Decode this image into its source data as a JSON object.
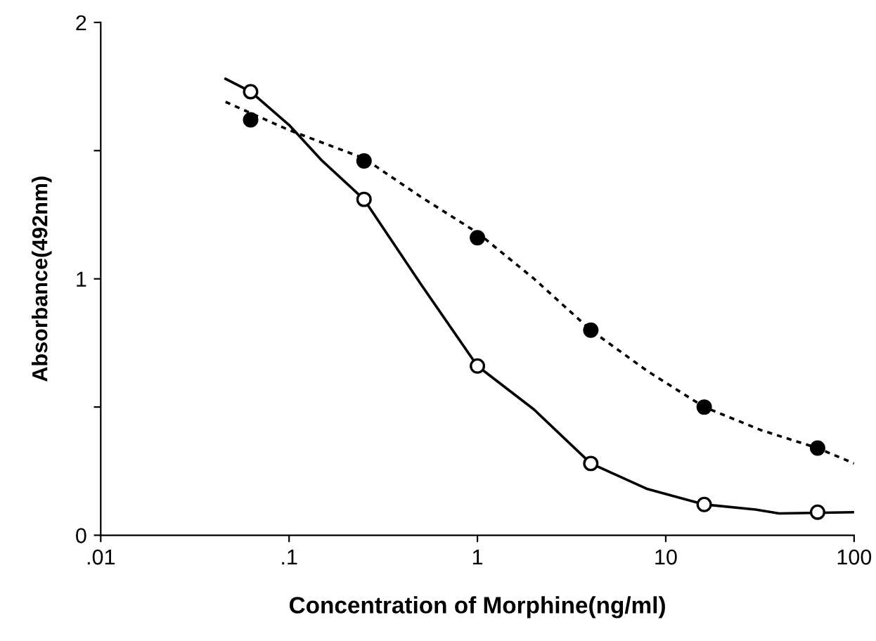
{
  "chart_data": {
    "type": "scatter",
    "xlabel": "Concentration of Morphine(ng/ml)",
    "ylabel": "Absorbance(492nm)",
    "log": "x",
    "xlim": [
      0.01,
      100
    ],
    "ylim": [
      0,
      2
    ],
    "xticks": [
      {
        "value": 0.01,
        "label": ".01"
      },
      {
        "value": 0.1,
        "label": ".1"
      },
      1,
      10,
      100
    ],
    "yticks": [
      0,
      {
        "value": 0.5,
        "label": null
      },
      1,
      {
        "value": 1.5,
        "label": null
      },
      2
    ],
    "grid": false,
    "legend": false,
    "series": [
      {
        "type": "line",
        "color": "#000000",
        "line_style": "solid",
        "marker": "none",
        "x": [
          0.046,
          0.0625,
          0.1,
          0.15,
          0.25,
          0.5,
          1,
          2,
          4,
          8,
          16,
          30,
          40,
          100
        ],
        "values": [
          1.78,
          1.73,
          1.6,
          1.46,
          1.31,
          0.98,
          0.66,
          0.49,
          0.28,
          0.18,
          0.12,
          0.1,
          0.085,
          0.09
        ]
      },
      {
        "type": "line",
        "color": "#000000",
        "line_style": "dotted",
        "marker": "none",
        "x": [
          0.046,
          0.1,
          0.25,
          0.5,
          1,
          2,
          4,
          8,
          16,
          32,
          64,
          100
        ],
        "values": [
          1.69,
          1.58,
          1.47,
          1.32,
          1.18,
          1.0,
          0.8,
          0.64,
          0.5,
          0.41,
          0.34,
          0.28
        ]
      },
      {
        "color": "#ffffff",
        "marker": "circle",
        "x": [
          0.0625,
          0.25,
          1,
          4,
          16,
          64
        ],
        "values": [
          1.73,
          1.31,
          0.66,
          0.28,
          0.12,
          0.09
        ]
      },
      {
        "color": "#000000",
        "marker": "circle",
        "x": [
          0.0625,
          0.25,
          1,
          4,
          16,
          64
        ],
        "values": [
          1.62,
          1.46,
          1.16,
          0.8,
          0.5,
          0.34
        ]
      }
    ]
  }
}
